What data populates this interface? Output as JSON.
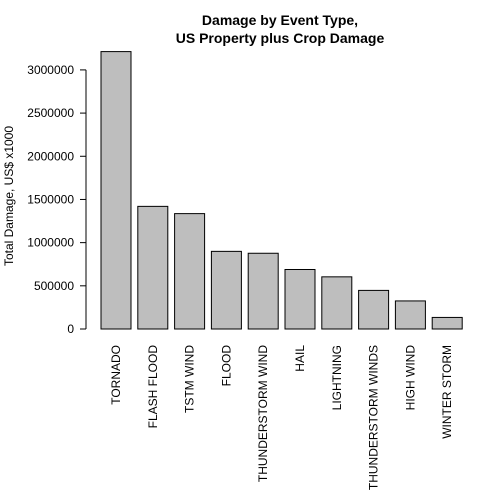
{
  "colors": {
    "bar_fill": "#bebebe",
    "bar_stroke": "#000000",
    "background": "#ffffff"
  },
  "chart_data": {
    "type": "bar",
    "title_lines": [
      "Damage by Event Type,",
      "US Property plus Crop Damage"
    ],
    "xlabel": "",
    "ylabel": "Total Damage, US$ x1000",
    "categories": [
      "TORNADO",
      "FLASH FLOOD",
      "TSTM WIND",
      "FLOOD",
      "THUNDERSTORM WIND",
      "HAIL",
      "LIGHTNING",
      "THUNDERSTORM WINDS",
      "HIGH WIND",
      "WINTER STORM"
    ],
    "values": [
      3212000,
      1420000,
      1336000,
      899000,
      877000,
      689000,
      604000,
      447000,
      325000,
      134000
    ],
    "ylim": [
      0,
      3300000
    ],
    "yticks": [
      0,
      500000,
      1000000,
      1500000,
      2000000,
      2500000,
      3000000
    ],
    "ytick_labels": [
      "0",
      "500000",
      "1000000",
      "1500000",
      "2000000",
      "2500000",
      "3000000"
    ],
    "grid": false,
    "legend": "none"
  }
}
